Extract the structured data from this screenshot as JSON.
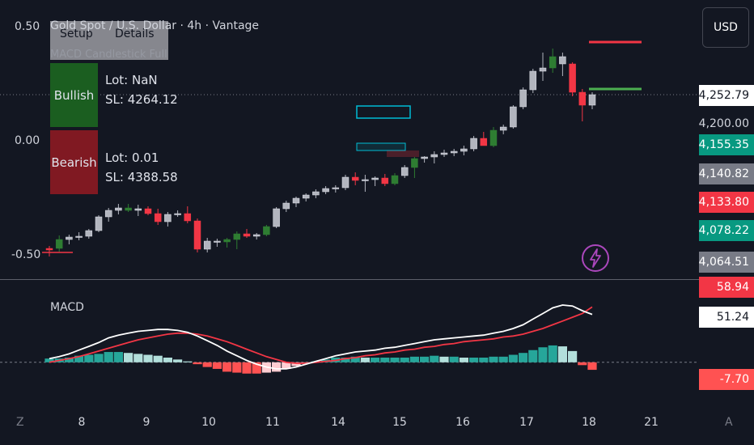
{
  "header": {
    "title": "Gold Spot / U.S. Dollar · 4h · Vantage",
    "indicator": "MACD Candlestick Full",
    "tabs": [
      "Setup",
      "Details"
    ],
    "currency_button": "USD"
  },
  "signals": {
    "bullish": {
      "label": "Bullish",
      "lot": "Lot: NaN",
      "sl": "SL: 4264.12"
    },
    "bearish": {
      "label": "Bearish",
      "lot": "Lot: 0.01",
      "sl": "SL: 4388.58"
    }
  },
  "left_axis": {
    "labels": [
      "0.50",
      "0.00",
      "-0.50"
    ]
  },
  "x_axis": {
    "labels": [
      "8",
      "9",
      "10",
      "11",
      "14",
      "15",
      "16",
      "17",
      "18",
      "21"
    ],
    "left_icon": "Z",
    "right_icon": "A"
  },
  "price_badges": [
    {
      "text": "4,252.79",
      "bg": "#ffffff",
      "fg": "#131722"
    },
    {
      "text": "4,200.00",
      "bg": "#131722",
      "fg": "#d1d4dc"
    },
    {
      "text": "4,155.35",
      "bg": "#089981",
      "fg": "#ffffff"
    },
    {
      "text": "4,140.82",
      "bg": "#787b86",
      "fg": "#ffffff"
    },
    {
      "text": "4,133.80",
      "bg": "#f23645",
      "fg": "#ffffff"
    },
    {
      "text": "4,078.22",
      "bg": "#089981",
      "fg": "#ffffff"
    },
    {
      "text": "4,064.51",
      "bg": "#787b86",
      "fg": "#ffffff"
    }
  ],
  "macd_pane": {
    "label": "MACD",
    "badges": [
      {
        "text": "58.94",
        "bg": "#f23645",
        "fg": "#ffffff"
      },
      {
        "text": "51.24",
        "bg": "#ffffff",
        "fg": "#131722"
      },
      {
        "text": "-7.70",
        "bg": "#ff5252",
        "fg": "#ffffff"
      }
    ]
  },
  "colors": {
    "background": "#131722",
    "up_candle": "#2e7d32",
    "down_candle": "#f23645",
    "neutral_candle": "#b2b5be",
    "macd_line": "#ffffff",
    "signal_line": "#f23645",
    "hist_teal": "#26a69a",
    "hist_teal_light": "#b2dfdb",
    "hist_red": "#ff5252",
    "hist_red_light": "#ffcdd2"
  },
  "chart_data": [
    {
      "type": "candlestick",
      "title": "Gold Spot / U.S. Dollar · 4h · Vantage",
      "x_labels": [
        "8",
        "9",
        "10",
        "11",
        "14",
        "15",
        "16",
        "17",
        "18",
        "21"
      ],
      "ylim": [
        4040,
        4330
      ],
      "candles": [
        {
          "o": 4061,
          "h": 4066,
          "l": 4053,
          "c": 4063,
          "col": "down"
        },
        {
          "o": 4063,
          "h": 4079,
          "l": 4059,
          "c": 4074,
          "col": "up"
        },
        {
          "o": 4074,
          "h": 4080,
          "l": 4068,
          "c": 4077,
          "col": "neutral"
        },
        {
          "o": 4077,
          "h": 4083,
          "l": 4073,
          "c": 4078,
          "col": "neutral"
        },
        {
          "o": 4078,
          "h": 4087,
          "l": 4075,
          "c": 4085,
          "col": "neutral"
        },
        {
          "o": 4085,
          "h": 4104,
          "l": 4083,
          "c": 4102,
          "col": "neutral"
        },
        {
          "o": 4102,
          "h": 4113,
          "l": 4096,
          "c": 4110,
          "col": "neutral"
        },
        {
          "o": 4110,
          "h": 4118,
          "l": 4105,
          "c": 4113,
          "col": "neutral"
        },
        {
          "o": 4113,
          "h": 4118,
          "l": 4108,
          "c": 4110,
          "col": "up"
        },
        {
          "o": 4110,
          "h": 4117,
          "l": 4103,
          "c": 4112,
          "col": "neutral"
        },
        {
          "o": 4112,
          "h": 4115,
          "l": 4104,
          "c": 4106,
          "col": "down"
        },
        {
          "o": 4106,
          "h": 4112,
          "l": 4092,
          "c": 4096,
          "col": "down"
        },
        {
          "o": 4096,
          "h": 4108,
          "l": 4090,
          "c": 4105,
          "col": "neutral"
        },
        {
          "o": 4105,
          "h": 4110,
          "l": 4102,
          "c": 4106,
          "col": "neutral"
        },
        {
          "o": 4106,
          "h": 4115,
          "l": 4094,
          "c": 4097,
          "col": "down"
        },
        {
          "o": 4097,
          "h": 4100,
          "l": 4058,
          "c": 4062,
          "col": "down"
        },
        {
          "o": 4062,
          "h": 4076,
          "l": 4058,
          "c": 4072,
          "col": "neutral"
        },
        {
          "o": 4072,
          "h": 4075,
          "l": 4065,
          "c": 4071,
          "col": "neutral"
        },
        {
          "o": 4071,
          "h": 4076,
          "l": 4064,
          "c": 4074,
          "col": "up"
        },
        {
          "o": 4074,
          "h": 4084,
          "l": 4062,
          "c": 4081,
          "col": "up"
        },
        {
          "o": 4081,
          "h": 4087,
          "l": 4076,
          "c": 4078,
          "col": "down"
        },
        {
          "o": 4078,
          "h": 4082,
          "l": 4074,
          "c": 4080,
          "col": "neutral"
        },
        {
          "o": 4080,
          "h": 4092,
          "l": 4078,
          "c": 4090,
          "col": "up"
        },
        {
          "o": 4090,
          "h": 4114,
          "l": 4088,
          "c": 4112,
          "col": "neutral"
        },
        {
          "o": 4112,
          "h": 4122,
          "l": 4108,
          "c": 4119,
          "col": "neutral"
        },
        {
          "o": 4119,
          "h": 4127,
          "l": 4114,
          "c": 4125,
          "col": "neutral"
        },
        {
          "o": 4125,
          "h": 4131,
          "l": 4121,
          "c": 4129,
          "col": "neutral"
        },
        {
          "o": 4129,
          "h": 4136,
          "l": 4125,
          "c": 4133,
          "col": "neutral"
        },
        {
          "o": 4133,
          "h": 4140,
          "l": 4130,
          "c": 4137,
          "col": "neutral"
        },
        {
          "o": 4137,
          "h": 4141,
          "l": 4132,
          "c": 4138,
          "col": "neutral"
        },
        {
          "o": 4138,
          "h": 4154,
          "l": 4135,
          "c": 4151,
          "col": "neutral"
        },
        {
          "o": 4151,
          "h": 4157,
          "l": 4141,
          "c": 4147,
          "col": "down"
        },
        {
          "o": 4147,
          "h": 4154,
          "l": 4133,
          "c": 4148,
          "col": "neutral"
        },
        {
          "o": 4148,
          "h": 4152,
          "l": 4140,
          "c": 4150,
          "col": "neutral"
        },
        {
          "o": 4150,
          "h": 4155,
          "l": 4140,
          "c": 4143,
          "col": "down"
        },
        {
          "o": 4143,
          "h": 4156,
          "l": 4141,
          "c": 4153,
          "col": "up"
        },
        {
          "o": 4153,
          "h": 4166,
          "l": 4150,
          "c": 4163,
          "col": "neutral"
        },
        {
          "o": 4163,
          "h": 4176,
          "l": 4150,
          "c": 4174,
          "col": "up"
        },
        {
          "o": 4174,
          "h": 4177,
          "l": 4169,
          "c": 4176,
          "col": "neutral"
        },
        {
          "o": 4176,
          "h": 4183,
          "l": 4168,
          "c": 4179,
          "col": "neutral"
        },
        {
          "o": 4179,
          "h": 4185,
          "l": 4176,
          "c": 4181,
          "col": "neutral"
        },
        {
          "o": 4181,
          "h": 4186,
          "l": 4177,
          "c": 4183,
          "col": "neutral"
        },
        {
          "o": 4183,
          "h": 4190,
          "l": 4178,
          "c": 4186,
          "col": "neutral"
        },
        {
          "o": 4186,
          "h": 4202,
          "l": 4183,
          "c": 4199,
          "col": "neutral"
        },
        {
          "o": 4199,
          "h": 4207,
          "l": 4192,
          "c": 4190,
          "col": "down"
        },
        {
          "o": 4190,
          "h": 4213,
          "l": 4188,
          "c": 4209,
          "col": "up"
        },
        {
          "o": 4209,
          "h": 4216,
          "l": 4204,
          "c": 4213,
          "col": "neutral"
        },
        {
          "o": 4213,
          "h": 4240,
          "l": 4211,
          "c": 4238,
          "col": "neutral"
        },
        {
          "o": 4238,
          "h": 4262,
          "l": 4235,
          "c": 4259,
          "col": "neutral"
        },
        {
          "o": 4259,
          "h": 4285,
          "l": 4255,
          "c": 4282,
          "col": "neutral"
        },
        {
          "o": 4282,
          "h": 4305,
          "l": 4270,
          "c": 4286,
          "col": "neutral"
        },
        {
          "o": 4286,
          "h": 4310,
          "l": 4280,
          "c": 4300,
          "col": "up"
        },
        {
          "o": 4300,
          "h": 4305,
          "l": 4276,
          "c": 4291,
          "col": "neutral"
        },
        {
          "o": 4291,
          "h": 4293,
          "l": 4251,
          "c": 4256,
          "col": "down"
        },
        {
          "o": 4256,
          "h": 4260,
          "l": 4220,
          "c": 4240,
          "col": "down"
        },
        {
          "o": 4240,
          "h": 4256,
          "l": 4235,
          "c": 4253,
          "col": "neutral"
        }
      ],
      "levels": [
        {
          "name": "stop-line",
          "y": 4318,
          "color": "#f23645"
        },
        {
          "name": "target-line",
          "y": 4260,
          "color": "#4caf50"
        }
      ]
    },
    {
      "type": "line+histogram",
      "title": "MACD",
      "ylim": [
        -45,
        80
      ],
      "macd": [
        4,
        6,
        9,
        13,
        17,
        21,
        26,
        29,
        31,
        33,
        34,
        35,
        35,
        34,
        32,
        28,
        23,
        18,
        12,
        7,
        2,
        -2,
        -5,
        -7,
        -7,
        -5,
        -2,
        1,
        4,
        7,
        9,
        11,
        12,
        13,
        15,
        16,
        18,
        20,
        22,
        24,
        25,
        26,
        27,
        28,
        29,
        31,
        33,
        36,
        40,
        46,
        52,
        58,
        61,
        60,
        55,
        51
      ],
      "signal": [
        0,
        2,
        4,
        6,
        9,
        12,
        15,
        18,
        21,
        24,
        26,
        28,
        30,
        31,
        31,
        30,
        28,
        25,
        22,
        18,
        14,
        10,
        6,
        3,
        0,
        -1,
        -1,
        0,
        1,
        2,
        4,
        5,
        7,
        8,
        10,
        11,
        13,
        14,
        16,
        17,
        19,
        20,
        22,
        23,
        24,
        25,
        27,
        28,
        30,
        33,
        36,
        40,
        44,
        48,
        52,
        59
      ],
      "hist": [
        4,
        4,
        5,
        7,
        8,
        9,
        11,
        11,
        10,
        9,
        8,
        7,
        5,
        3,
        1,
        -2,
        -5,
        -7,
        -10,
        -11,
        -12,
        -12,
        -11,
        -10,
        -7,
        -4,
        -1,
        1,
        3,
        5,
        5,
        6,
        5,
        5,
        5,
        5,
        5,
        6,
        6,
        7,
        6,
        6,
        5,
        5,
        5,
        6,
        6,
        8,
        10,
        13,
        16,
        18,
        17,
        12,
        -3,
        -8
      ]
    }
  ]
}
